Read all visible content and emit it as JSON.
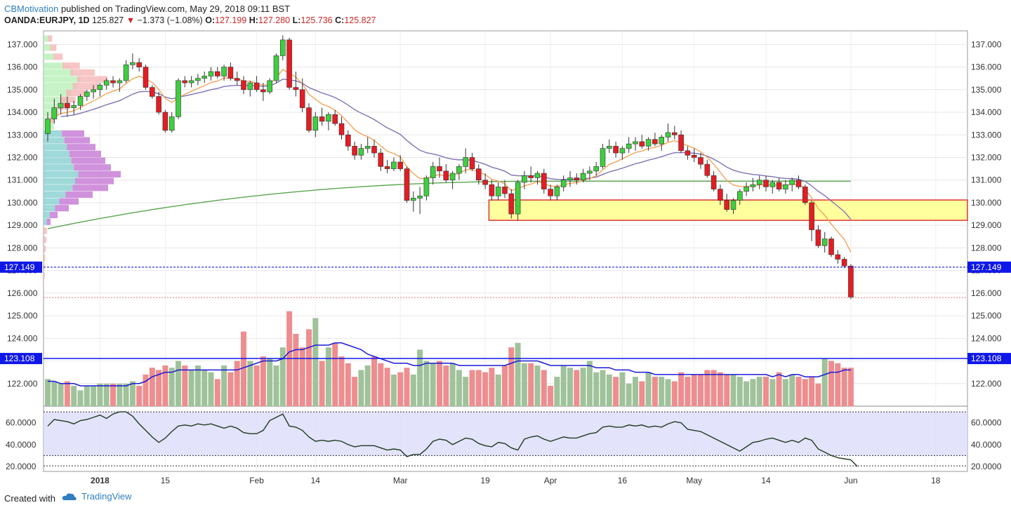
{
  "header": {
    "author": "CBMotivation",
    "published": "published on TradingView.com, May 29, 2018 09:11 BST",
    "symbol": "OANDA:EURJPY, 1D",
    "last": "125.827",
    "change": "−1.373 (−1.08%)",
    "o_label": "O:",
    "o_value": "127.199",
    "h_label": "H:",
    "h_value": "127.280",
    "l_label": "L:",
    "l_value": "125.736",
    "c_label": "C:",
    "c_value": "125.827"
  },
  "footer": {
    "created": "Created with",
    "brand": "TradingView"
  },
  "colors": {
    "up": "#3fce3f",
    "down": "#e51c23",
    "vol_up": "#9fc29a",
    "vol_down": "#ee8d8f",
    "ema_short": "#f4a35a",
    "ema_mid": "#7f73b5",
    "ema_long": "#5aa64f",
    "zone_fill": "#ffff9e",
    "zone_border": "#d33",
    "level": "#1018e8",
    "rsi_line": "#1f3b1f",
    "rsi_band": "#dcdcfa"
  },
  "chart_data": {
    "type": "candlestick",
    "y_ticks": [
      "137.000",
      "136.000",
      "135.000",
      "134.000",
      "133.000",
      "132.000",
      "131.000",
      "130.000",
      "129.000",
      "128.000",
      "127.000",
      "126.000",
      "125.000",
      "124.000",
      "123.000",
      "122.000"
    ],
    "x_ticks": [
      "2018",
      "15",
      "Feb",
      "14",
      "Mar",
      "19",
      "Apr",
      "16",
      "May",
      "14",
      "Jun",
      "18"
    ],
    "price_range": [
      121.0,
      137.6
    ],
    "price_label": "127.149",
    "volume_level_label": "123.108",
    "zone": {
      "top": 130.12,
      "bottom": 129.22,
      "start_bar": 68
    },
    "candles": [
      [
        133.05,
        134.0,
        132.7,
        133.7
      ],
      [
        133.7,
        134.6,
        133.5,
        134.2
      ],
      [
        134.2,
        134.8,
        133.9,
        134.4
      ],
      [
        134.4,
        134.7,
        133.8,
        134.2
      ],
      [
        134.2,
        134.5,
        133.9,
        134.3
      ],
      [
        134.3,
        134.8,
        134.1,
        134.7
      ],
      [
        134.7,
        135.0,
        134.5,
        134.9
      ],
      [
        134.9,
        135.2,
        134.6,
        135.0
      ],
      [
        135.0,
        135.3,
        134.7,
        135.2
      ],
      [
        135.2,
        135.5,
        135.0,
        135.4
      ],
      [
        135.4,
        135.6,
        135.1,
        135.3
      ],
      [
        135.3,
        135.5,
        134.9,
        135.4
      ],
      [
        135.4,
        136.3,
        135.3,
        136.1
      ],
      [
        136.1,
        136.6,
        135.9,
        136.2
      ],
      [
        136.2,
        136.4,
        135.8,
        136.0
      ],
      [
        136.0,
        136.1,
        135.0,
        135.1
      ],
      [
        135.1,
        135.2,
        134.6,
        134.7
      ],
      [
        134.7,
        134.9,
        133.9,
        134.0
      ],
      [
        134.0,
        134.1,
        133.1,
        133.2
      ],
      [
        133.2,
        134.0,
        133.1,
        133.8
      ],
      [
        133.8,
        135.5,
        133.7,
        135.4
      ],
      [
        135.4,
        135.6,
        135.1,
        135.3
      ],
      [
        135.3,
        135.6,
        135.1,
        135.4
      ],
      [
        135.4,
        135.7,
        135.2,
        135.5
      ],
      [
        135.5,
        135.8,
        135.3,
        135.6
      ],
      [
        135.6,
        136.0,
        135.4,
        135.8
      ],
      [
        135.8,
        136.0,
        135.5,
        135.6
      ],
      [
        135.6,
        136.1,
        135.4,
        136.0
      ],
      [
        136.0,
        136.2,
        135.4,
        135.5
      ],
      [
        135.5,
        135.8,
        135.2,
        135.4
      ],
      [
        135.4,
        135.6,
        134.8,
        135.0
      ],
      [
        135.0,
        135.4,
        134.7,
        135.3
      ],
      [
        135.3,
        135.6,
        134.9,
        135.0
      ],
      [
        135.0,
        135.3,
        134.5,
        134.9
      ],
      [
        134.9,
        135.5,
        134.8,
        135.4
      ],
      [
        135.4,
        136.6,
        135.3,
        136.5
      ],
      [
        136.5,
        137.4,
        136.3,
        137.2
      ],
      [
        137.2,
        137.3,
        135.0,
        135.1
      ],
      [
        135.1,
        135.8,
        134.7,
        135.0
      ],
      [
        135.0,
        135.5,
        134.0,
        134.2
      ],
      [
        134.2,
        134.4,
        133.1,
        133.2
      ],
      [
        133.2,
        134.0,
        132.9,
        133.8
      ],
      [
        133.8,
        134.2,
        133.4,
        133.6
      ],
      [
        133.6,
        134.0,
        133.2,
        133.9
      ],
      [
        133.9,
        134.1,
        133.4,
        133.5
      ],
      [
        133.5,
        133.8,
        132.8,
        133.0
      ],
      [
        133.0,
        133.2,
        132.3,
        132.5
      ],
      [
        132.5,
        132.7,
        131.9,
        132.1
      ],
      [
        132.1,
        132.6,
        131.9,
        132.4
      ],
      [
        132.4,
        132.9,
        132.2,
        132.5
      ],
      [
        132.5,
        132.8,
        132.0,
        132.2
      ],
      [
        132.2,
        132.4,
        131.4,
        131.6
      ],
      [
        131.6,
        131.9,
        131.3,
        131.5
      ],
      [
        131.5,
        132.0,
        131.4,
        131.8
      ],
      [
        131.8,
        132.1,
        131.4,
        131.5
      ],
      [
        131.5,
        131.6,
        130.0,
        130.1
      ],
      [
        130.1,
        130.5,
        129.6,
        130.2
      ],
      [
        130.2,
        130.7,
        129.5,
        130.3
      ],
      [
        130.3,
        131.2,
        130.1,
        131.1
      ],
      [
        131.1,
        131.8,
        130.8,
        131.6
      ],
      [
        131.6,
        132.0,
        131.1,
        131.4
      ],
      [
        131.4,
        131.7,
        130.9,
        131.0
      ],
      [
        131.0,
        131.4,
        130.6,
        131.3
      ],
      [
        131.3,
        131.7,
        131.0,
        131.6
      ],
      [
        131.6,
        132.4,
        131.3,
        132.0
      ],
      [
        132.0,
        132.2,
        131.4,
        131.5
      ],
      [
        131.5,
        131.7,
        130.8,
        131.0
      ],
      [
        131.0,
        131.3,
        130.6,
        130.8
      ],
      [
        130.8,
        131.0,
        130.1,
        130.3
      ],
      [
        130.3,
        130.9,
        130.1,
        130.7
      ],
      [
        130.7,
        131.0,
        130.2,
        130.4
      ],
      [
        130.4,
        130.6,
        129.3,
        129.5
      ],
      [
        129.5,
        131.0,
        129.2,
        130.9
      ],
      [
        130.9,
        131.4,
        130.6,
        131.2
      ],
      [
        131.2,
        131.6,
        130.9,
        131.1
      ],
      [
        131.1,
        131.4,
        130.8,
        131.3
      ],
      [
        131.3,
        131.5,
        130.4,
        130.6
      ],
      [
        130.6,
        130.8,
        130.1,
        130.3
      ],
      [
        130.3,
        130.8,
        130.1,
        130.7
      ],
      [
        130.7,
        131.2,
        130.5,
        131.0
      ],
      [
        131.0,
        131.4,
        130.7,
        131.1
      ],
      [
        131.1,
        131.3,
        130.8,
        131.0
      ],
      [
        131.0,
        131.5,
        130.9,
        131.3
      ],
      [
        131.3,
        131.6,
        131.0,
        131.4
      ],
      [
        131.4,
        131.8,
        131.2,
        131.6
      ],
      [
        131.6,
        132.6,
        131.5,
        132.4
      ],
      [
        132.4,
        132.8,
        132.2,
        132.5
      ],
      [
        132.5,
        132.7,
        132.0,
        132.2
      ],
      [
        132.2,
        132.5,
        131.9,
        132.4
      ],
      [
        132.4,
        132.9,
        132.2,
        132.6
      ],
      [
        132.6,
        132.9,
        132.3,
        132.7
      ],
      [
        132.7,
        133.0,
        132.4,
        132.5
      ],
      [
        132.5,
        132.9,
        132.3,
        132.8
      ],
      [
        132.8,
        133.1,
        132.5,
        132.6
      ],
      [
        132.6,
        133.0,
        132.3,
        132.9
      ],
      [
        132.9,
        133.5,
        132.7,
        133.1
      ],
      [
        133.1,
        133.4,
        132.8,
        133.0
      ],
      [
        133.0,
        133.2,
        132.2,
        132.3
      ],
      [
        132.3,
        132.5,
        131.9,
        132.1
      ],
      [
        132.1,
        132.4,
        131.8,
        132.0
      ],
      [
        132.0,
        132.2,
        131.5,
        131.7
      ],
      [
        131.7,
        131.9,
        131.1,
        131.2
      ],
      [
        131.2,
        131.4,
        130.5,
        130.6
      ],
      [
        130.6,
        130.8,
        129.9,
        130.1
      ],
      [
        130.1,
        130.4,
        129.6,
        129.7
      ],
      [
        129.7,
        130.2,
        129.5,
        130.1
      ],
      [
        130.1,
        130.6,
        129.9,
        130.5
      ],
      [
        130.5,
        130.9,
        130.3,
        130.7
      ],
      [
        130.7,
        131.1,
        130.5,
        130.8
      ],
      [
        130.8,
        131.2,
        130.6,
        131.0
      ],
      [
        131.0,
        131.2,
        130.5,
        130.7
      ],
      [
        130.7,
        131.0,
        130.4,
        130.9
      ],
      [
        130.9,
        131.1,
        130.5,
        130.6
      ],
      [
        130.6,
        131.0,
        130.4,
        130.8
      ],
      [
        130.8,
        131.1,
        130.5,
        131.0
      ],
      [
        131.0,
        131.2,
        130.6,
        130.7
      ],
      [
        130.7,
        130.8,
        129.9,
        130.0
      ],
      [
        130.0,
        130.1,
        128.3,
        128.8
      ],
      [
        128.8,
        129.0,
        128.0,
        128.1
      ],
      [
        128.1,
        128.7,
        127.8,
        128.4
      ],
      [
        128.4,
        128.5,
        127.6,
        127.7
      ],
      [
        127.7,
        127.9,
        127.3,
        127.5
      ],
      [
        127.5,
        127.6,
        127.1,
        127.2
      ],
      [
        127.199,
        127.28,
        125.736,
        125.827
      ]
    ],
    "volume_range": [
      121.0,
      125.6
    ],
    "volume": [
      122.2,
      122.1,
      122.0,
      122.1,
      121.9,
      121.7,
      121.9,
      121.9,
      122.0,
      122.0,
      122.0,
      122.0,
      122.0,
      122.1,
      121.9,
      122.4,
      122.7,
      122.6,
      122.8,
      122.7,
      123.0,
      122.8,
      122.6,
      122.8,
      122.6,
      122.5,
      122.2,
      122.8,
      122.5,
      123.0,
      124.3,
      123.0,
      122.8,
      123.2,
      123.1,
      122.8,
      123.6,
      125.2,
      124.2,
      123.6,
      124.4,
      124.9,
      123.0,
      123.6,
      123.8,
      123.2,
      122.9,
      122.3,
      122.6,
      122.8,
      123.2,
      122.9,
      122.7,
      122.4,
      122.5,
      122.7,
      122.4,
      123.5,
      123.0,
      122.9,
      123.0,
      122.8,
      122.9,
      122.6,
      122.3,
      122.6,
      122.6,
      122.5,
      122.7,
      122.4,
      122.8,
      123.6,
      123.8,
      122.9,
      122.9,
      122.8,
      122.6,
      121.9,
      122.3,
      122.8,
      122.7,
      122.6,
      122.7,
      123.0,
      122.5,
      122.6,
      122.4,
      122.3,
      122.5,
      122.0,
      122.3,
      122.1,
      122.5,
      122.3,
      122.3,
      122.2,
      122.1,
      122.5,
      122.3,
      122.4,
      122.4,
      122.6,
      122.6,
      122.5,
      122.4,
      122.4,
      122.3,
      122.1,
      122.2,
      122.3,
      122.3,
      122.2,
      122.5,
      122.2,
      122.4,
      122.3,
      122.2,
      122.3,
      122.0,
      123.1,
      123.0,
      122.9,
      122.7,
      122.7
    ],
    "volume_avg": [
      122.1,
      122.1,
      122.0,
      122.0,
      122.0,
      121.9,
      121.9,
      121.9,
      121.9,
      121.9,
      121.9,
      121.9,
      121.9,
      122.0,
      122.0,
      122.1,
      122.3,
      122.4,
      122.5,
      122.5,
      122.6,
      122.6,
      122.6,
      122.6,
      122.6,
      122.6,
      122.6,
      122.6,
      122.6,
      122.6,
      122.7,
      122.8,
      122.9,
      123.0,
      123.0,
      123.0,
      123.1,
      123.4,
      123.5,
      123.5,
      123.6,
      123.7,
      123.7,
      123.7,
      123.8,
      123.8,
      123.7,
      123.6,
      123.5,
      123.3,
      123.2,
      123.1,
      123.0,
      122.9,
      122.9,
      122.9,
      122.8,
      122.8,
      122.9,
      122.9,
      122.9,
      122.9,
      122.9,
      122.8,
      122.8,
      122.8,
      122.8,
      122.8,
      122.8,
      122.8,
      122.8,
      122.9,
      123.0,
      123.0,
      123.0,
      123.0,
      122.9,
      122.8,
      122.8,
      122.8,
      122.8,
      122.8,
      122.8,
      122.8,
      122.7,
      122.7,
      122.7,
      122.6,
      122.6,
      122.6,
      122.5,
      122.5,
      122.5,
      122.4,
      122.4,
      122.4,
      122.4,
      122.4,
      122.4,
      122.4,
      122.4,
      122.4,
      122.4,
      122.4,
      122.4,
      122.4,
      122.4,
      122.4,
      122.4,
      122.4,
      122.4,
      122.3,
      122.4,
      122.3,
      122.4,
      122.4,
      122.3,
      122.3,
      122.3,
      122.4,
      122.5,
      122.5,
      122.6,
      122.6
    ],
    "rsi_ticks": [
      "60.0000",
      "40.0000",
      "20.0000"
    ],
    "rsi_range": [
      18,
      72
    ],
    "rsi_band": [
      30,
      70
    ],
    "rsi": [
      57,
      63,
      62,
      61,
      59,
      62,
      63,
      65,
      67,
      64,
      68,
      70,
      70,
      66,
      59,
      53,
      47,
      42,
      46,
      52,
      57,
      58,
      57,
      59,
      58,
      59,
      57,
      55,
      57,
      55,
      51,
      50,
      50,
      53,
      62,
      65,
      68,
      57,
      56,
      53,
      47,
      43,
      44,
      43,
      44,
      43,
      40,
      38,
      39,
      39,
      39,
      37,
      35,
      36,
      35,
      29,
      31,
      31,
      36,
      43,
      45,
      44,
      40,
      43,
      46,
      45,
      41,
      39,
      38,
      42,
      41,
      37,
      35,
      45,
      47,
      48,
      45,
      43,
      45,
      47,
      46,
      46,
      48,
      50,
      51,
      56,
      57,
      56,
      56,
      58,
      57,
      58,
      56,
      57,
      56,
      59,
      61,
      60,
      54,
      53,
      52,
      49,
      46,
      43,
      40,
      37,
      34,
      38,
      42,
      43,
      45,
      46,
      44,
      42,
      44,
      42,
      46,
      44,
      36,
      33,
      30,
      28,
      27,
      26,
      20
    ]
  }
}
